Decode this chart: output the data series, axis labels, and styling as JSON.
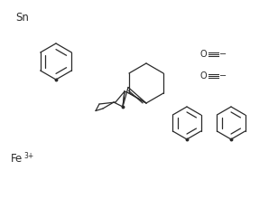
{
  "bg_color": "#ffffff",
  "line_color": "#2a2a2a",
  "fig_width": 3.08,
  "fig_height": 2.2,
  "dpi": 100,
  "sn_label": "Sn",
  "fe_label": "Fe",
  "fe_superscript": "3+"
}
